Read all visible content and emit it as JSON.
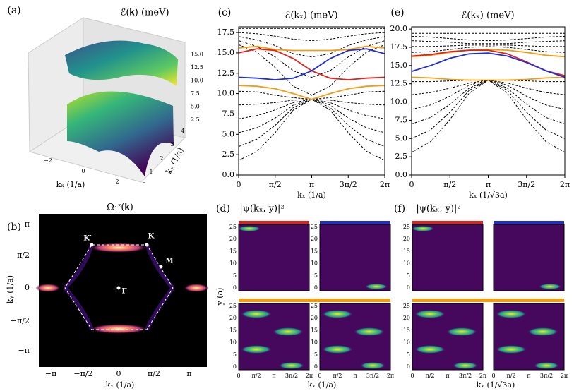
{
  "chart_data": [
    {
      "type": "line",
      "panel": "(c)",
      "title": "ℰ(kₓ) (meV)",
      "x_label": "kₓ (1/a)",
      "x": [
        0,
        0.7854,
        1.5708,
        2.3562,
        3.1416,
        3.927,
        4.7124,
        5.4978,
        6.2832
      ],
      "xlim": [
        0,
        6.2832
      ],
      "xticks": [
        0,
        {
          "value": 1.5708,
          "label": "π/2"
        },
        {
          "value": 3.1416,
          "label": "π"
        },
        {
          "value": 4.7124,
          "label": "3π/2"
        },
        {
          "value": 6.2832,
          "label": "2π"
        }
      ],
      "ylim": [
        0,
        18.2
      ],
      "yticks": [
        {
          "value": 0,
          "label": "0.0"
        },
        2.5,
        {
          "value": 5,
          "label": "5.0"
        },
        7.5,
        {
          "value": 10,
          "label": "10.0"
        },
        12.5,
        {
          "value": 15,
          "label": "15.0"
        },
        17.5
      ],
      "series": [
        {
          "color": "#000000",
          "dashed": true,
          "values": [
            1.8,
            2.9,
            5.2,
            8.0,
            9.3,
            8.0,
            5.2,
            2.9,
            1.8
          ]
        },
        {
          "color": "#000000",
          "dashed": true,
          "values": [
            3.5,
            4.4,
            6.1,
            8.3,
            9.3,
            8.3,
            6.1,
            4.4,
            3.5
          ]
        },
        {
          "color": "#000000",
          "dashed": true,
          "values": [
            5.2,
            5.8,
            7.0,
            8.6,
            9.3,
            8.6,
            7.0,
            5.8,
            5.2
          ]
        },
        {
          "color": "#000000",
          "dashed": true,
          "values": [
            6.9,
            7.3,
            8.0,
            8.9,
            9.3,
            8.9,
            8.0,
            7.3,
            6.9
          ]
        },
        {
          "color": "#000000",
          "dashed": true,
          "values": [
            8.6,
            8.7,
            8.9,
            9.2,
            9.3,
            9.2,
            8.9,
            8.7,
            8.6
          ]
        },
        {
          "color": "#000000",
          "dashed": true,
          "values": [
            10.3,
            10.2,
            9.8,
            9.5,
            9.3,
            9.5,
            9.8,
            10.2,
            10.3
          ]
        },
        {
          "color": "#000000",
          "dashed": true,
          "values": [
            18,
            18,
            18,
            18,
            18,
            18,
            18,
            18,
            18
          ]
        },
        {
          "color": "#000000",
          "dashed": true,
          "values": [
            17.5,
            17.35,
            17.05,
            16.68,
            16.5,
            16.68,
            17.05,
            17.35,
            17.5
          ]
        },
        {
          "color": "#000000",
          "dashed": true,
          "values": [
            17,
            16.6,
            15.9,
            14.9,
            14.5,
            14.9,
            15.9,
            16.6,
            17
          ]
        },
        {
          "color": "#000000",
          "dashed": true,
          "values": [
            16.5,
            15.8,
            14.5,
            12.8,
            12,
            12.8,
            14.5,
            15.8,
            16.5
          ]
        },
        {
          "color": "#000000",
          "dashed": true,
          "values": [
            16,
            15.1,
            13.2,
            10.9,
            9.8,
            10.9,
            13.2,
            15.1,
            16
          ]
        },
        {
          "color": "#f39c12",
          "dashed": false,
          "values": [
            15.6,
            15.8,
            15.4,
            15.3,
            15.3,
            15.3,
            15.4,
            15.8,
            15.6
          ]
        },
        {
          "color": "#f39c12",
          "dashed": false,
          "values": [
            11.0,
            10.9,
            10.6,
            10.0,
            9.3,
            10.0,
            10.6,
            10.9,
            11.0
          ]
        },
        {
          "color": "#e3211c",
          "dashed": false,
          "values": [
            15.0,
            15.5,
            15.3,
            14.3,
            12.8,
            11.9,
            11.7,
            11.9,
            12.0
          ]
        },
        {
          "color": "#1f2fd6",
          "dashed": false,
          "values": [
            12.0,
            11.9,
            11.7,
            11.9,
            12.8,
            14.3,
            15.3,
            15.5,
            14.9
          ]
        }
      ]
    },
    {
      "type": "line",
      "panel": "(e)",
      "title": "ℰ(kₓ) (meV)",
      "x_label": "kₓ (1/√3a)",
      "x": [
        0,
        0.7854,
        1.5708,
        2.3562,
        3.1416,
        3.927,
        4.7124,
        5.4978,
        6.2832
      ],
      "xlim": [
        0,
        6.2832
      ],
      "xticks": [
        0,
        {
          "value": 1.5708,
          "label": "π/2"
        },
        {
          "value": 3.1416,
          "label": "π"
        },
        {
          "value": 4.7124,
          "label": "3π/2"
        },
        {
          "value": 6.2832,
          "label": "2π"
        }
      ],
      "ylim": [
        0,
        20.3
      ],
      "yticks": [
        {
          "value": 0,
          "label": "0.0"
        },
        2.5,
        {
          "value": 5,
          "label": "5.0"
        },
        7.5,
        {
          "value": 10,
          "label": "10.0"
        },
        12.5,
        {
          "value": 15,
          "label": "15.0"
        },
        17.5,
        {
          "value": 20,
          "label": "20.0"
        }
      ],
      "series": [
        {
          "color": "#000000",
          "dashed": true,
          "values": [
            3.1,
            4.6,
            7.6,
            11.2,
            13,
            11.2,
            7.6,
            4.6,
            3.1
          ]
        },
        {
          "color": "#000000",
          "dashed": true,
          "values": [
            5,
            6.2,
            8.6,
            11.6,
            13,
            11.6,
            8.6,
            6.2,
            5
          ]
        },
        {
          "color": "#000000",
          "dashed": true,
          "values": [
            7,
            7.9,
            9.7,
            11.9,
            13,
            11.9,
            9.7,
            7.9,
            7
          ]
        },
        {
          "color": "#000000",
          "dashed": true,
          "values": [
            9,
            9.6,
            10.8,
            12.3,
            13,
            12.3,
            10.8,
            9.6,
            9
          ]
        },
        {
          "color": "#000000",
          "dashed": true,
          "values": [
            11,
            11.3,
            11.9,
            12.6,
            13,
            12.6,
            11.9,
            11.3,
            11
          ]
        },
        {
          "color": "#000000",
          "dashed": true,
          "values": [
            12.8,
            12.8,
            12.9,
            13,
            13,
            13,
            12.9,
            12.8,
            12.8
          ]
        },
        {
          "color": "#000000",
          "dashed": true,
          "values": [
            19.4,
            19.4,
            19.4,
            19.4,
            19.4,
            19.4,
            19.4,
            19.4,
            19.4
          ]
        },
        {
          "color": "#000000",
          "dashed": true,
          "values": [
            19,
            18.9,
            18.7,
            18.5,
            18.4,
            18.5,
            18.7,
            18.9,
            19
          ]
        },
        {
          "color": "#000000",
          "dashed": true,
          "values": [
            18.4,
            18.3,
            18.2,
            18.0,
            18.0,
            18.0,
            18.2,
            18.3,
            18.4
          ]
        },
        {
          "color": "#000000",
          "dashed": true,
          "values": [
            17.6,
            17.6,
            17.7,
            17.8,
            17.8,
            17.8,
            17.7,
            17.6,
            17.6
          ]
        },
        {
          "color": "#000000",
          "dashed": true,
          "values": [
            16.8,
            16.9,
            17.2,
            17.5,
            17.6,
            17.5,
            17.2,
            16.9,
            16.8
          ]
        },
        {
          "color": "#f39c12",
          "dashed": false,
          "values": [
            16.2,
            16.4,
            16.8,
            17.1,
            17.2,
            17.1,
            16.8,
            16.4,
            16.2
          ]
        },
        {
          "color": "#f39c12",
          "dashed": false,
          "values": [
            13.4,
            13.3,
            13.1,
            13.0,
            13.0,
            13.0,
            13.1,
            13.3,
            13.4
          ]
        },
        {
          "color": "#e3211c",
          "dashed": false,
          "values": [
            16.3,
            16.5,
            16.9,
            17.1,
            17.1,
            16.6,
            15.5,
            14.3,
            13.6
          ]
        },
        {
          "color": "#1f2fd6",
          "dashed": false,
          "values": [
            14.2,
            15.0,
            16.0,
            16.6,
            16.7,
            16.3,
            15.4,
            14.3,
            13.4
          ]
        }
      ]
    }
  ],
  "figure": {
    "a": {
      "panel": "(a)",
      "title": "ℰ(𝐤) (meV)",
      "z_ticks": [
        "2.5",
        "5.0",
        "7.5",
        "10.0",
        "12.5",
        "15.0"
      ],
      "x_ticks": [
        "−2",
        "0",
        "2"
      ],
      "y_ticks": [
        "0",
        "1",
        "2",
        "3",
        "4"
      ],
      "x_label": "kₓ (1/a)",
      "y_label": "kᵧ (1/a)"
    },
    "b": {
      "panel": "(b)",
      "title": "Ω₁ᶻ(𝐤)",
      "x_ticks": [
        "−π",
        "−π/2",
        "0",
        "π/2",
        "π"
      ],
      "y_ticks": [
        "π",
        "π/2",
        "0",
        "−π/2",
        "−π"
      ],
      "x_label": "kₓ (1/a)",
      "y_label": "kᵧ (1/a)",
      "points": [
        "K′",
        "K",
        "M",
        "Γ"
      ]
    },
    "d": {
      "panel": "(d)",
      "title": "|ψ(kₓ, y)|²",
      "y_label": "y (a)",
      "y_ticks": [
        "25",
        "20",
        "15",
        "10",
        "5",
        "0"
      ],
      "x_ticks": [
        "0",
        "π/2",
        "π",
        "3π/2",
        "2π"
      ],
      "x_label": "kₓ (1/a)"
    },
    "f": {
      "panel": "(f)",
      "title": "|ψ(kₓ, y)|²",
      "y_ticks": [
        "25",
        "20",
        "15",
        "10",
        "5",
        "0"
      ],
      "x_ticks": [
        "0",
        "π/2",
        "π",
        "3π/2",
        "2π"
      ],
      "x_label": "kₓ (1/√3a)"
    }
  }
}
